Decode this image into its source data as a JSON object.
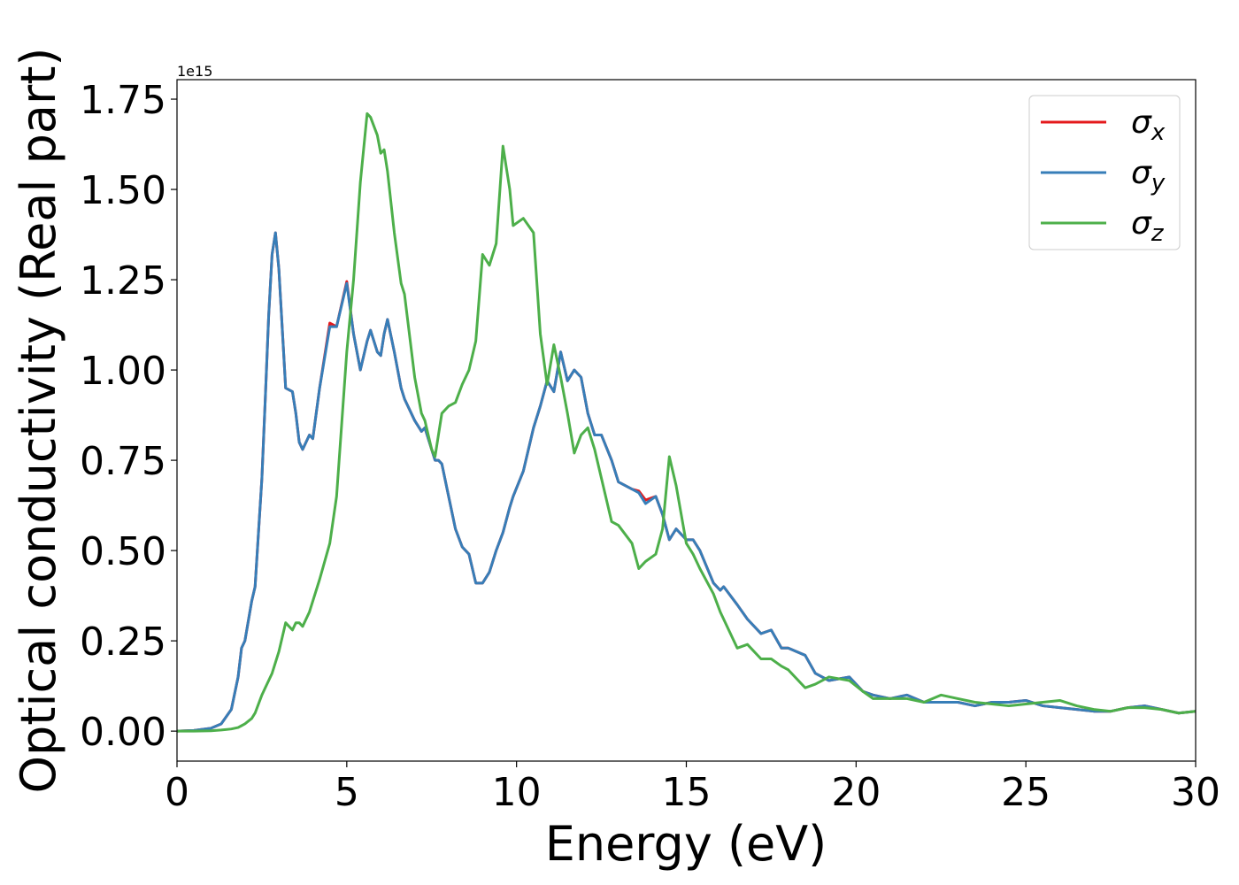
{
  "chart_data": {
    "type": "line",
    "xlabel": "Energy (eV)",
    "ylabel": "Optical conductivity (Real part)",
    "y_offset_label": "1e15",
    "xlim": [
      0,
      30
    ],
    "ylim": [
      -0.083,
      1.804
    ],
    "xticks": [
      0,
      5,
      10,
      15,
      20,
      25,
      30
    ],
    "yticks": [
      {
        "value": 0,
        "label": "0.00"
      },
      {
        "value": 0.25,
        "label": "0.25"
      },
      {
        "value": 0.5,
        "label": "0.50"
      },
      {
        "value": 0.75,
        "label": "0.75"
      },
      {
        "value": 1,
        "label": "1.00"
      },
      {
        "value": 1.25,
        "label": "1.25"
      },
      {
        "value": 1.5,
        "label": "1.50"
      },
      {
        "value": 1.75,
        "label": "1.75"
      }
    ],
    "legend": "upper right",
    "x": [
      0,
      0.5,
      1,
      1.3,
      1.6,
      1.8,
      1.9,
      2.0,
      2.2,
      2.3,
      2.5,
      2.6,
      2.7,
      2.8,
      2.9,
      3.0,
      3.2,
      3.4,
      3.5,
      3.6,
      3.7,
      3.9,
      4.0,
      4.2,
      4.5,
      4.7,
      5.0,
      5.2,
      5.4,
      5.6,
      5.7,
      5.9,
      6.0,
      6.1,
      6.2,
      6.4,
      6.6,
      6.7,
      7.0,
      7.2,
      7.3,
      7.5,
      7.6,
      7.7,
      7.8,
      8.0,
      8.2,
      8.4,
      8.6,
      8.8,
      9.0,
      9.2,
      9.4,
      9.6,
      9.8,
      9.9,
      10.2,
      10.5,
      10.7,
      10.9,
      11.1,
      11.3,
      11.5,
      11.7,
      11.9,
      12.1,
      12.3,
      12.5,
      12.8,
      13.0,
      13.4,
      13.6,
      13.8,
      14.1,
      14.3,
      14.5,
      14.7,
      15.0,
      15.2,
      15.4,
      15.8,
      16.0,
      16.1,
      16.5,
      16.8,
      17.2,
      17.5,
      17.8,
      18.0,
      18.5,
      18.8,
      19.2,
      19.8,
      20.2,
      20.5,
      21,
      21.5,
      22,
      22.5,
      23,
      23.5,
      24,
      24.5,
      25,
      25.5,
      26,
      26.5,
      27,
      27.5,
      28,
      28.5,
      29,
      29.5,
      30
    ],
    "series": [
      {
        "name": "σx",
        "color": "#e41a1c",
        "values": [
          0,
          0.002,
          0.008,
          0.02,
          0.06,
          0.15,
          0.23,
          0.25,
          0.36,
          0.4,
          0.7,
          0.92,
          1.15,
          1.32,
          1.38,
          1.28,
          0.95,
          0.94,
          0.88,
          0.8,
          0.78,
          0.82,
          0.81,
          0.95,
          1.13,
          1.12,
          1.245,
          1.1,
          1.0,
          1.08,
          1.11,
          1.05,
          1.04,
          1.1,
          1.14,
          1.05,
          0.95,
          0.92,
          0.86,
          0.83,
          0.84,
          0.78,
          0.75,
          0.75,
          0.74,
          0.65,
          0.56,
          0.51,
          0.49,
          0.41,
          0.41,
          0.44,
          0.5,
          0.55,
          0.62,
          0.65,
          0.72,
          0.84,
          0.9,
          0.97,
          0.94,
          1.05,
          0.97,
          1.0,
          0.98,
          0.88,
          0.82,
          0.82,
          0.75,
          0.69,
          0.67,
          0.665,
          0.64,
          0.65,
          0.6,
          0.53,
          0.56,
          0.53,
          0.53,
          0.5,
          0.41,
          0.39,
          0.4,
          0.35,
          0.31,
          0.27,
          0.28,
          0.23,
          0.23,
          0.21,
          0.16,
          0.14,
          0.15,
          0.11,
          0.1,
          0.09,
          0.1,
          0.08,
          0.08,
          0.08,
          0.07,
          0.08,
          0.08,
          0.085,
          0.07,
          0.065,
          0.06,
          0.055,
          0.055,
          0.065,
          0.07,
          0.06,
          0.05,
          0.055
        ]
      },
      {
        "name": "σy",
        "color": "#377eb8",
        "values": [
          0,
          0.002,
          0.008,
          0.02,
          0.06,
          0.15,
          0.23,
          0.25,
          0.36,
          0.4,
          0.7,
          0.92,
          1.15,
          1.32,
          1.38,
          1.28,
          0.95,
          0.94,
          0.88,
          0.8,
          0.78,
          0.82,
          0.81,
          0.95,
          1.12,
          1.12,
          1.24,
          1.1,
          1.0,
          1.08,
          1.11,
          1.05,
          1.04,
          1.1,
          1.14,
          1.05,
          0.95,
          0.92,
          0.86,
          0.83,
          0.84,
          0.78,
          0.75,
          0.75,
          0.74,
          0.65,
          0.56,
          0.51,
          0.49,
          0.41,
          0.41,
          0.44,
          0.5,
          0.55,
          0.62,
          0.65,
          0.72,
          0.84,
          0.9,
          0.97,
          0.94,
          1.05,
          0.97,
          1.0,
          0.98,
          0.88,
          0.82,
          0.82,
          0.75,
          0.69,
          0.67,
          0.66,
          0.63,
          0.65,
          0.6,
          0.53,
          0.56,
          0.53,
          0.53,
          0.5,
          0.41,
          0.39,
          0.4,
          0.35,
          0.31,
          0.27,
          0.28,
          0.23,
          0.23,
          0.21,
          0.16,
          0.14,
          0.15,
          0.11,
          0.1,
          0.09,
          0.1,
          0.08,
          0.08,
          0.08,
          0.07,
          0.08,
          0.08,
          0.085,
          0.07,
          0.065,
          0.06,
          0.055,
          0.055,
          0.065,
          0.07,
          0.06,
          0.05,
          0.055
        ]
      },
      {
        "name": "σz",
        "color": "#4daf4a",
        "values": [
          0,
          0,
          0.001,
          0.003,
          0.006,
          0.01,
          0.015,
          0.02,
          0.035,
          0.05,
          0.1,
          0.12,
          0.14,
          0.16,
          0.19,
          0.22,
          0.3,
          0.28,
          0.3,
          0.3,
          0.29,
          0.33,
          0.36,
          0.42,
          0.52,
          0.65,
          1.05,
          1.25,
          1.52,
          1.71,
          1.7,
          1.65,
          1.6,
          1.61,
          1.55,
          1.38,
          1.24,
          1.21,
          0.98,
          0.88,
          0.86,
          0.78,
          0.76,
          0.82,
          0.88,
          0.9,
          0.91,
          0.96,
          1.0,
          1.08,
          1.32,
          1.29,
          1.35,
          1.62,
          1.5,
          1.4,
          1.42,
          1.38,
          1.1,
          0.96,
          1.07,
          0.98,
          0.88,
          0.77,
          0.82,
          0.84,
          0.78,
          0.7,
          0.58,
          0.57,
          0.52,
          0.45,
          0.47,
          0.49,
          0.56,
          0.76,
          0.68,
          0.52,
          0.49,
          0.45,
          0.38,
          0.33,
          0.31,
          0.23,
          0.24,
          0.2,
          0.2,
          0.18,
          0.17,
          0.12,
          0.13,
          0.15,
          0.14,
          0.11,
          0.09,
          0.09,
          0.09,
          0.08,
          0.1,
          0.09,
          0.08,
          0.075,
          0.07,
          0.075,
          0.08,
          0.085,
          0.07,
          0.06,
          0.055,
          0.065,
          0.065,
          0.06,
          0.05,
          0.055
        ]
      }
    ]
  }
}
